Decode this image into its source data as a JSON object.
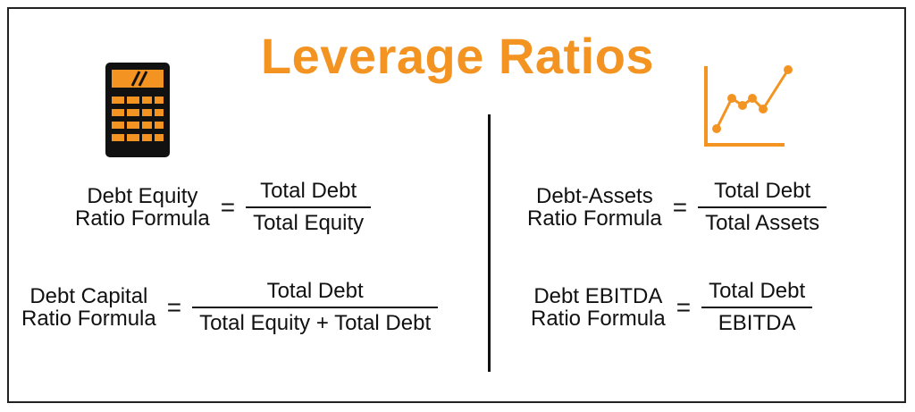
{
  "title": "Leverage Ratios",
  "colors": {
    "accent": "#f39422",
    "text": "#111111",
    "background": "#ffffff"
  },
  "icons": {
    "left": "calculator-icon",
    "right": "line-chart-icon"
  },
  "formulas": {
    "debt_equity": {
      "lhs_line1": "Debt Equity",
      "lhs_line2": "Ratio Formula",
      "equals": "=",
      "numerator": "Total Debt",
      "denominator": "Total Equity"
    },
    "debt_capital": {
      "lhs_line1": "Debt Capital",
      "lhs_line2": "Ratio Formula",
      "equals": "=",
      "numerator": "Total Debt",
      "denominator": "Total Equity + Total Debt"
    },
    "debt_assets": {
      "lhs_line1": "Debt-Assets",
      "lhs_line2": "Ratio Formula",
      "equals": "=",
      "numerator": "Total Debt",
      "denominator": "Total Assets"
    },
    "debt_ebitda": {
      "lhs_line1": "Debt EBITDA",
      "lhs_line2": "Ratio Formula",
      "equals": "=",
      "numerator": "Total Debt",
      "denominator": "EBITDA"
    }
  }
}
